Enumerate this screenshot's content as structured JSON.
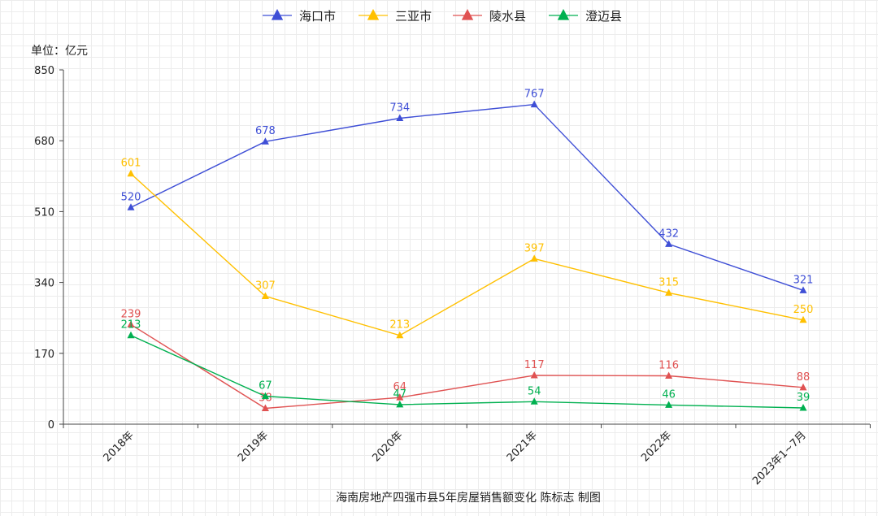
{
  "chart_data": {
    "type": "line",
    "unit_label": "单位：亿元",
    "footer": "海南房地产四强市县5年房屋销售额变化   陈标志 制图",
    "categories": [
      "2018年",
      "2019年",
      "2020年",
      "2021年",
      "2022年",
      "2023年1~7月"
    ],
    "ylim": [
      0,
      850
    ],
    "yticks": [
      0,
      170,
      340,
      510,
      680,
      850
    ],
    "legend_position": "top",
    "grid": true,
    "series": [
      {
        "name": "海口市",
        "color": "#3f4fd6",
        "values": [
          520,
          678,
          734,
          767,
          432,
          321
        ]
      },
      {
        "name": "三亚市",
        "color": "#ffc000",
        "values": [
          601,
          307,
          213,
          397,
          315,
          250
        ]
      },
      {
        "name": "陵水县",
        "color": "#e05252",
        "values": [
          239,
          38,
          64,
          117,
          116,
          88
        ]
      },
      {
        "name": "澄迈县",
        "color": "#00b050",
        "values": [
          213,
          67,
          47,
          54,
          46,
          39
        ]
      }
    ]
  }
}
